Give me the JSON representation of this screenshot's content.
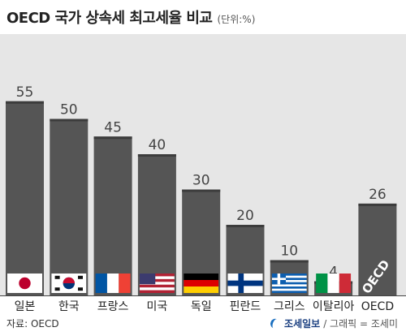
{
  "title": "OECD 국가 상속세 최고세율 비교",
  "unit": "(단위:%)",
  "source": "자료: OECD",
  "publisher": "조세일보",
  "credit": "/ 그래픽 = 조세미",
  "colors": {
    "bar": "#555555",
    "bar_top": "#3c3c3c",
    "background": "#e6e6e6"
  },
  "chart_data": {
    "type": "bar",
    "title": "OECD 국가 상속세 최고세율 비교",
    "ylabel": "(단위:%)",
    "ylim": [
      0,
      60
    ],
    "categories": [
      "일본",
      "한국",
      "프랑스",
      "미국",
      "독일",
      "핀란드",
      "그리스",
      "이탈리아",
      "OECD"
    ],
    "values": [
      55,
      50,
      45,
      40,
      30,
      20,
      10,
      4,
      26
    ],
    "flags": [
      "japan",
      "south-korea",
      "france",
      "usa",
      "germany",
      "finland",
      "greece",
      "italy",
      "oecd"
    ],
    "grid": false
  }
}
